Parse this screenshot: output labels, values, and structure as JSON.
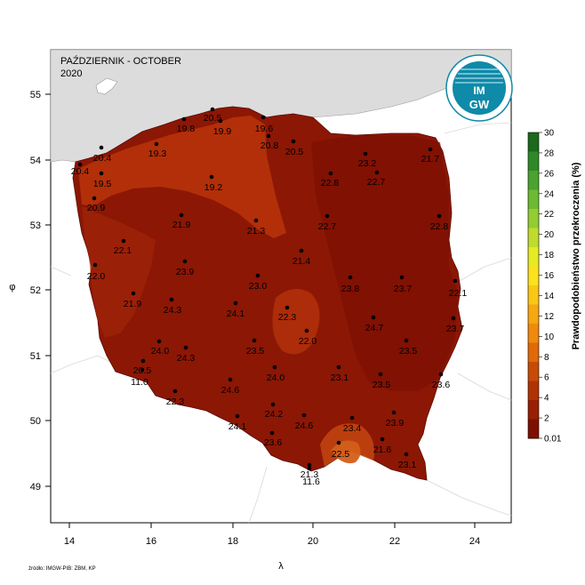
{
  "map": {
    "title": "PAŹDZIERNIK - OCTOBER",
    "year": "2020",
    "x_axis_label": "λ",
    "y_axis_label": "φ",
    "x_ticks": [
      "14",
      "16",
      "18",
      "20",
      "22",
      "24"
    ],
    "y_ticks": [
      "55",
      "54",
      "53",
      "52",
      "51",
      "50",
      "49"
    ],
    "source": "źródło: IMGW-PIB: ZBM, KP",
    "logo_text_top": "IM",
    "logo_text_bottom": "GW"
  },
  "colorbar": {
    "title": "Prawdopodobieństwo przekroczenia (%)",
    "ticks": [
      "30",
      "28",
      "26",
      "24",
      "22",
      "20",
      "18",
      "16",
      "14",
      "12",
      "10",
      "8",
      "6",
      "4",
      "2",
      "0.01"
    ],
    "colors": [
      "#1b6a1b",
      "#2e8a27",
      "#4aa32e",
      "#6cba32",
      "#93cc33",
      "#bfdc2e",
      "#e6ea22",
      "#fbe21c",
      "#fbc716",
      "#f7a711",
      "#f08a0c",
      "#e06a08",
      "#c84b05",
      "#b03304",
      "#981f04",
      "#7e1002"
    ]
  },
  "stations": [
    {
      "value": "19.6"
    },
    {
      "value": "20.5"
    },
    {
      "value": "19.8"
    },
    {
      "value": "19.9"
    },
    {
      "value": "20.8"
    },
    {
      "value": "20.5"
    },
    {
      "value": "20.4"
    },
    {
      "value": "19.3"
    },
    {
      "value": "20.4"
    },
    {
      "value": "19.5"
    },
    {
      "value": "19.2"
    },
    {
      "value": "20.9"
    },
    {
      "value": "23.2"
    },
    {
      "value": "21.7"
    },
    {
      "value": "22.8"
    },
    {
      "value": "22.7"
    },
    {
      "value": "21.9"
    },
    {
      "value": "21.3"
    },
    {
      "value": "22.7"
    },
    {
      "value": "22.8"
    },
    {
      "value": "22.1"
    },
    {
      "value": "21.4"
    },
    {
      "value": "22.0"
    },
    {
      "value": "23.9"
    },
    {
      "value": "23.0"
    },
    {
      "value": "23.8"
    },
    {
      "value": "23.7"
    },
    {
      "value": "22.1"
    },
    {
      "value": "21.9"
    },
    {
      "value": "24.3"
    },
    {
      "value": "24.1"
    },
    {
      "value": "22.3"
    },
    {
      "value": "22.0"
    },
    {
      "value": "24.7"
    },
    {
      "value": "23.7"
    },
    {
      "value": "24.0"
    },
    {
      "value": "24.3"
    },
    {
      "value": "23.5"
    },
    {
      "value": "23.5"
    },
    {
      "value": "20.5"
    },
    {
      "value": "11.0"
    },
    {
      "value": "24.0"
    },
    {
      "value": "23.1"
    },
    {
      "value": "23.5"
    },
    {
      "value": "23.6"
    },
    {
      "value": "24.6"
    },
    {
      "value": "22.3"
    },
    {
      "value": "24.2"
    },
    {
      "value": "24.6"
    },
    {
      "value": "23.4"
    },
    {
      "value": "23.9"
    },
    {
      "value": "24.1"
    },
    {
      "value": "23.6"
    },
    {
      "value": "21.6"
    },
    {
      "value": "22.5"
    },
    {
      "value": "23.1"
    },
    {
      "value": "21.3"
    },
    {
      "value": "11.6"
    }
  ]
}
